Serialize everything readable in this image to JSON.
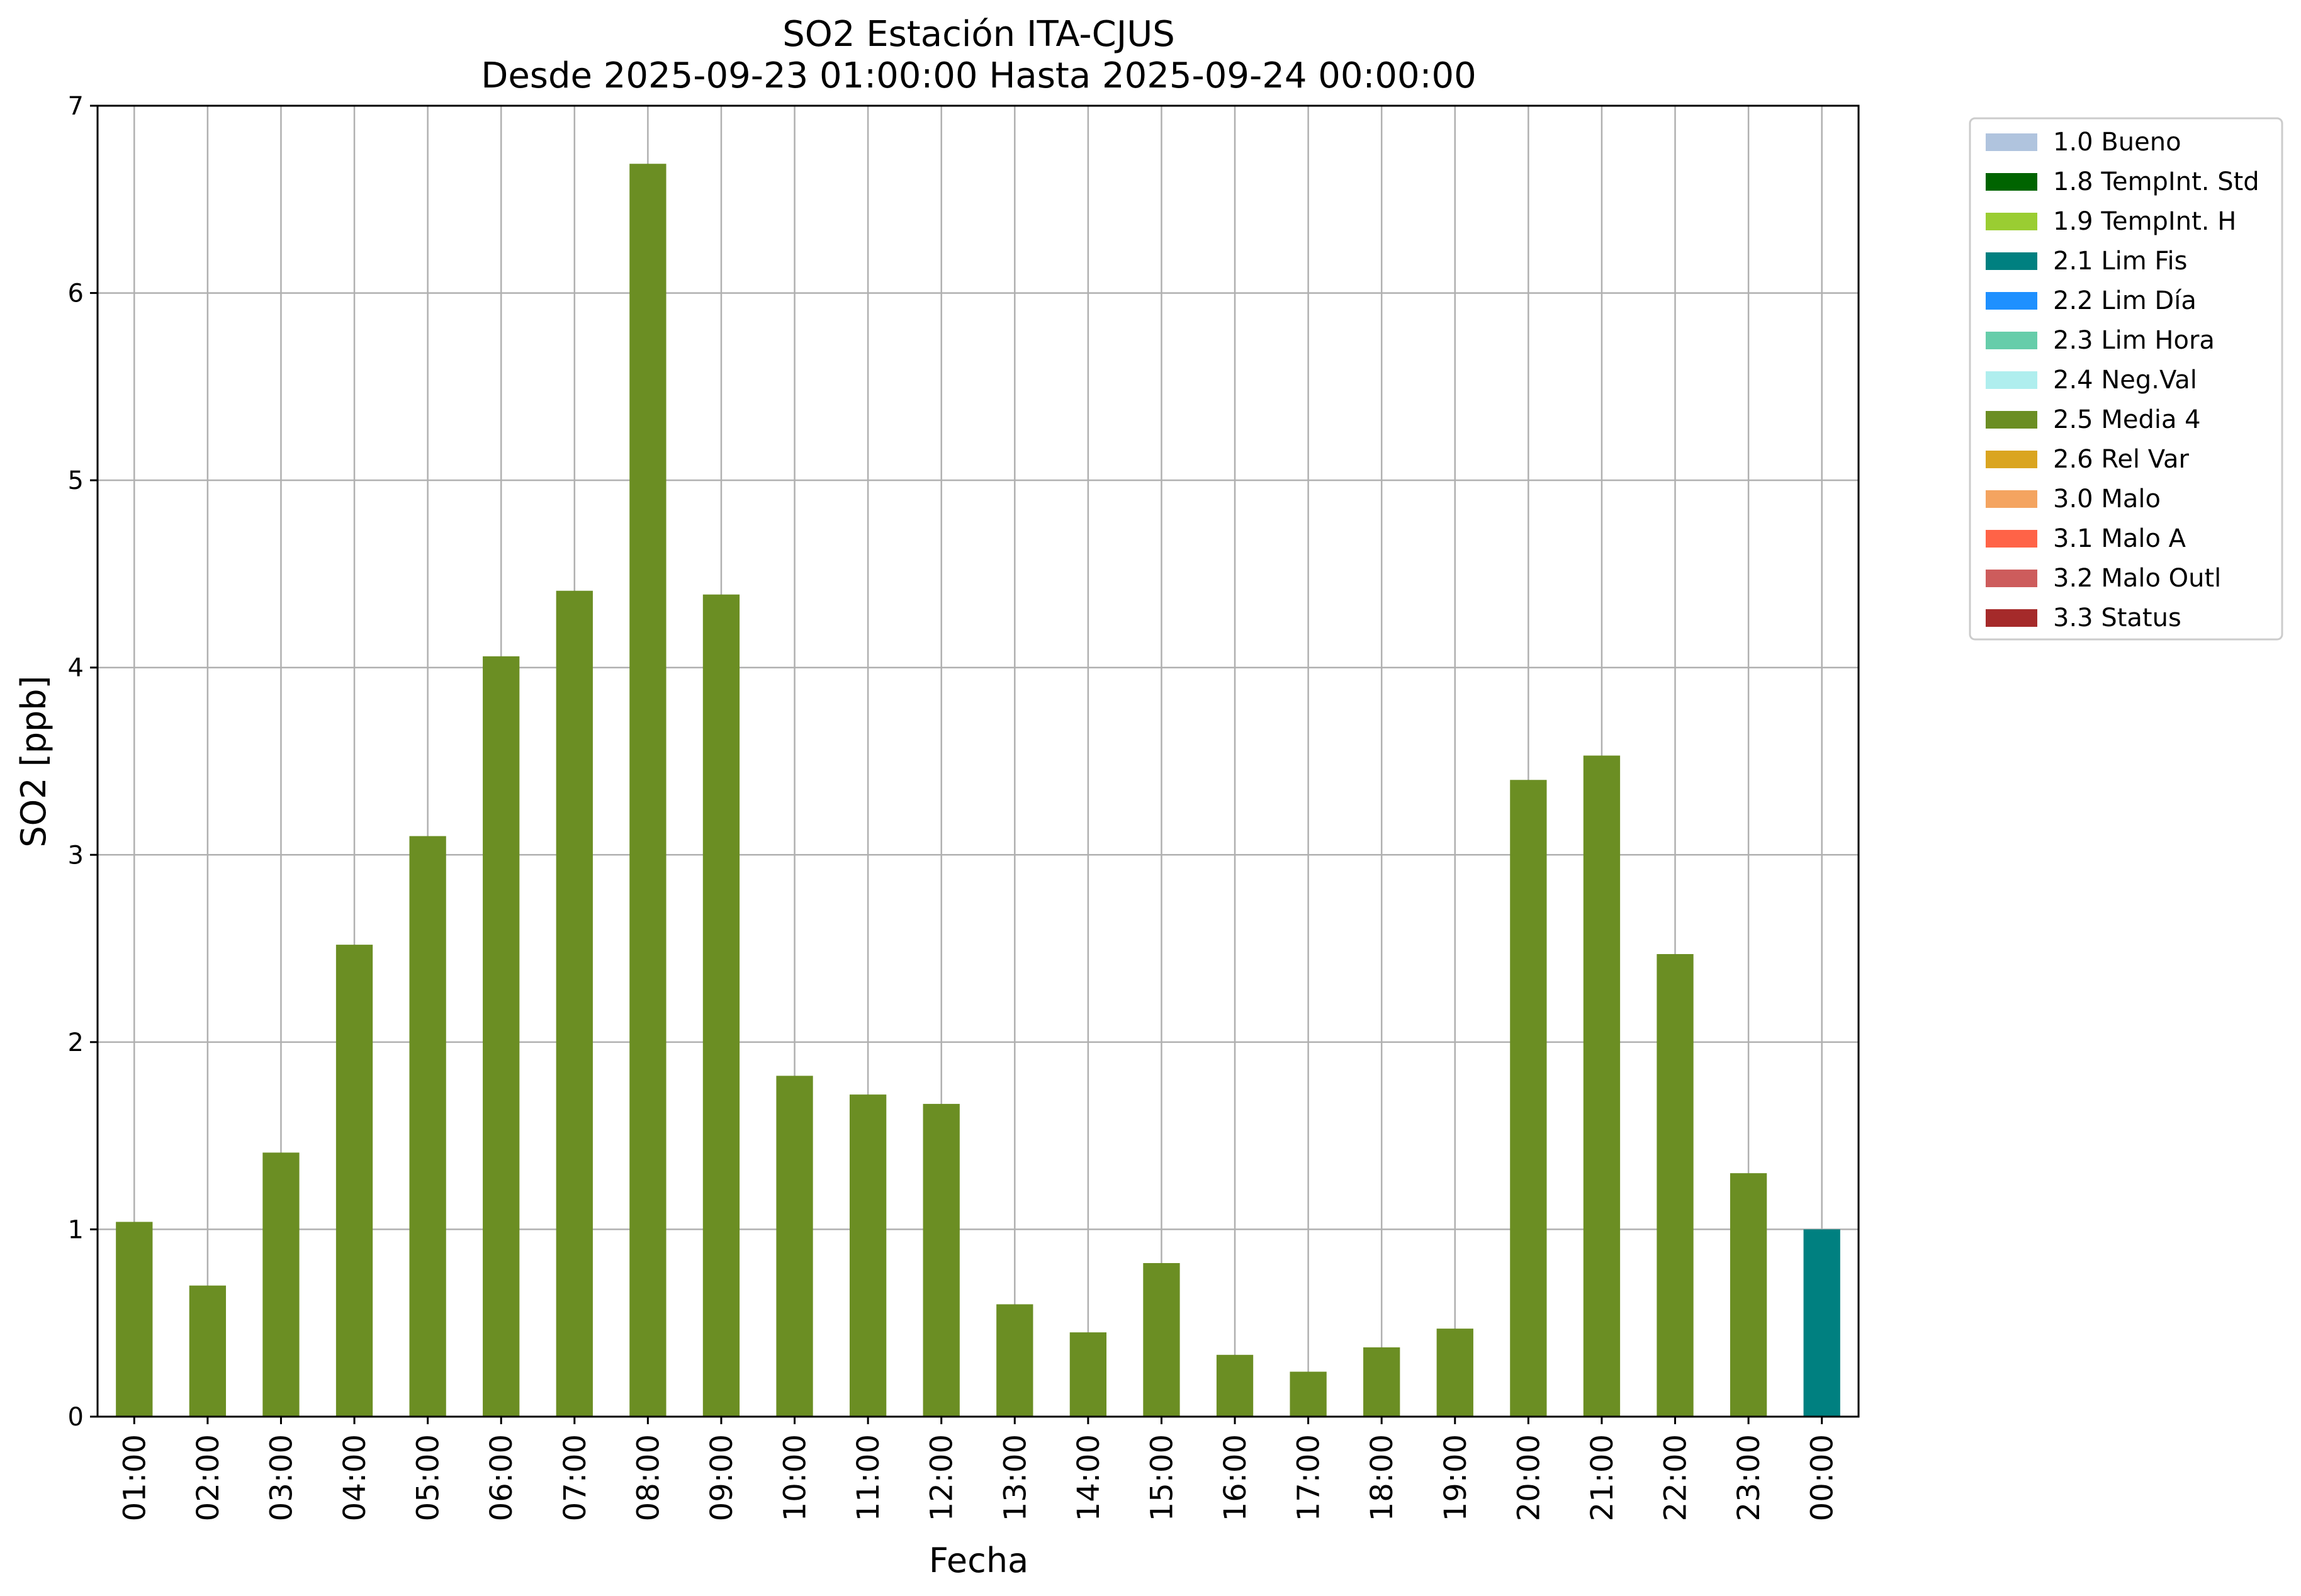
{
  "chart_data": {
    "type": "bar",
    "title": "SO2 Estación ITA-CJUS",
    "subtitle": "Desde 2025-09-23 01:00:00 Hasta 2025-09-24 00:00:00",
    "xlabel": "Fecha",
    "ylabel": "SO2 [ppb]",
    "ylim": [
      0,
      7
    ],
    "yticks": [
      "0",
      "1",
      "2",
      "3",
      "4",
      "5",
      "6",
      "7"
    ],
    "grid": true,
    "legend_position": "outside-right-top",
    "categories": [
      "01:00",
      "02:00",
      "03:00",
      "04:00",
      "05:00",
      "06:00",
      "07:00",
      "08:00",
      "09:00",
      "10:00",
      "11:00",
      "12:00",
      "13:00",
      "14:00",
      "15:00",
      "16:00",
      "17:00",
      "18:00",
      "19:00",
      "20:00",
      "21:00",
      "22:00",
      "23:00",
      "00:00"
    ],
    "values": [
      1.04,
      0.7,
      1.41,
      2.52,
      3.1,
      4.06,
      4.41,
      6.69,
      4.39,
      1.82,
      1.72,
      1.67,
      0.6,
      0.45,
      0.82,
      0.33,
      0.24,
      0.37,
      0.47,
      3.4,
      3.53,
      2.47,
      1.3,
      1.0
    ],
    "flags": [
      "2.5 Media 4",
      "2.5 Media 4",
      "2.5 Media 4",
      "2.5 Media 4",
      "2.5 Media 4",
      "2.5 Media 4",
      "2.5 Media 4",
      "2.5 Media 4",
      "2.5 Media 4",
      "2.5 Media 4",
      "2.5 Media 4",
      "2.5 Media 4",
      "2.5 Media 4",
      "2.5 Media 4",
      "2.5 Media 4",
      "2.5 Media 4",
      "2.5 Media 4",
      "2.5 Media 4",
      "2.5 Media 4",
      "2.5 Media 4",
      "2.5 Media 4",
      "2.5 Media 4",
      "2.5 Media 4",
      "2.1 Lim Fis"
    ],
    "legend": [
      {
        "label": "1.0 Bueno",
        "color": "#b0c4de"
      },
      {
        "label": "1.8 TempInt. Std",
        "color": "#006400"
      },
      {
        "label": "1.9 TempInt. H",
        "color": "#9acd32"
      },
      {
        "label": "2.1 Lim Fis",
        "color": "#008080"
      },
      {
        "label": "2.2 Lim Día",
        "color": "#1e90ff"
      },
      {
        "label": "2.3 Lim Hora",
        "color": "#66cdaa"
      },
      {
        "label": "2.4 Neg.Val",
        "color": "#afeeee"
      },
      {
        "label": "2.5 Media 4",
        "color": "#6b8e23"
      },
      {
        "label": "2.6 Rel Var",
        "color": "#daa520"
      },
      {
        "label": "3.0 Malo",
        "color": "#f4a460"
      },
      {
        "label": "3.1 Malo A",
        "color": "#ff6347"
      },
      {
        "label": "3.2 Malo Outl",
        "color": "#cd5c5c"
      },
      {
        "label": "3.3 Status",
        "color": "#a52a2a"
      }
    ]
  }
}
